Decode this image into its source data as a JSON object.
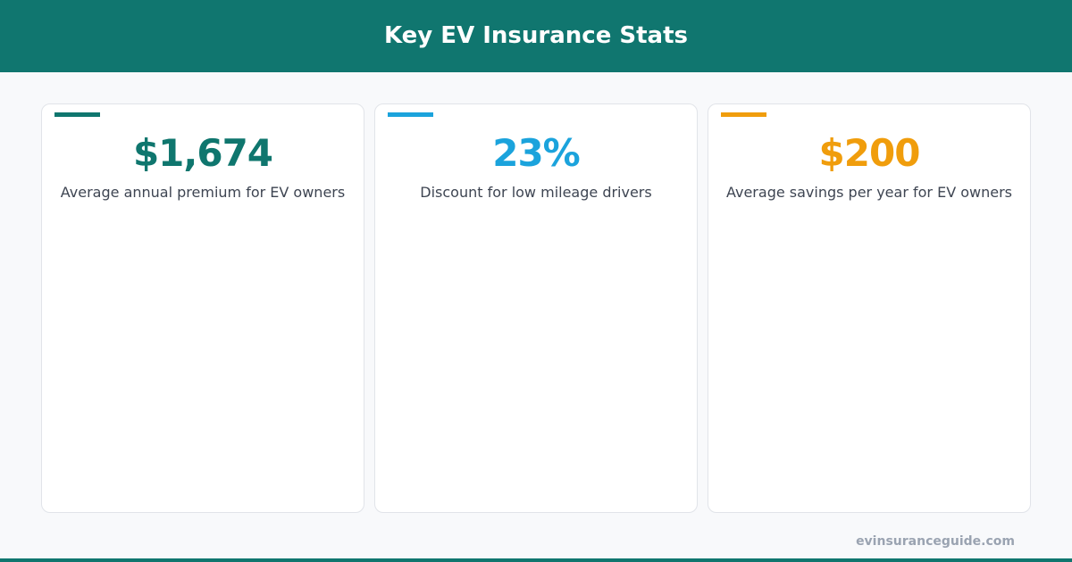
{
  "header": {
    "title": "Key EV Insurance Stats"
  },
  "cards": [
    {
      "value": "$1,674",
      "label": "Average annual premium for EV owners",
      "color": "#0f766e"
    },
    {
      "value": "23%",
      "label": "Discount for low mileage drivers",
      "color": "#1ba3dc"
    },
    {
      "value": "$200",
      "label": "Average savings per year for EV owners",
      "color": "#f09d0c"
    }
  ],
  "footer": {
    "site": "evinsuranceguide.com"
  }
}
